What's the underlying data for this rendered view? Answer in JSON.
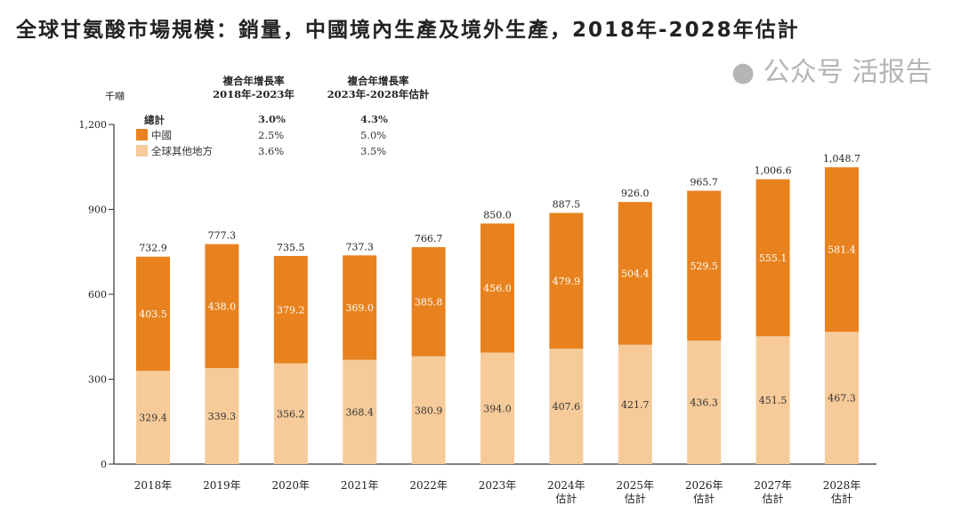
{
  "chart_data": {
    "type": "bar",
    "stacked": true,
    "title": "全球甘氨酸市場規模：銷量，中國境內生產及境外生產，2018年-2028年估計",
    "ylabel": "千噸",
    "ylim": [
      0,
      1200
    ],
    "yticks": [
      "0",
      "300",
      "600",
      "900",
      "1,200"
    ],
    "ytick_values": [
      0,
      300,
      600,
      900,
      1200
    ],
    "categories": [
      [
        "2018年"
      ],
      [
        "2019年"
      ],
      [
        "2020年"
      ],
      [
        "2021年"
      ],
      [
        "2022年"
      ],
      [
        "2023年"
      ],
      [
        "2024年",
        "估計"
      ],
      [
        "2025年",
        "估計"
      ],
      [
        "2026年",
        "估計"
      ],
      [
        "2027年",
        "估計"
      ],
      [
        "2028年",
        "估計"
      ]
    ],
    "series": [
      {
        "name": "全球其他地方",
        "color": "#F6CB99",
        "values": [
          329.4,
          339.3,
          356.2,
          368.4,
          380.9,
          394.0,
          407.6,
          421.7,
          436.3,
          451.5,
          467.3
        ],
        "labels": [
          "329.4",
          "339.3",
          "356.2",
          "368.4",
          "380.9",
          "394.0",
          "407.6",
          "421.7",
          "436.3",
          "451.5",
          "467.3"
        ]
      },
      {
        "name": "中國",
        "color": "#E8821E",
        "values": [
          403.5,
          438.0,
          379.2,
          369.0,
          385.8,
          456.0,
          479.9,
          504.4,
          529.5,
          555.1,
          581.4
        ],
        "labels": [
          "403.5",
          "438.0",
          "379.2",
          "369.0",
          "385.8",
          "456.0",
          "479.9",
          "504.4",
          "529.5",
          "555.1",
          "581.4"
        ]
      }
    ],
    "totals": [
      "732.9",
      "777.3",
      "735.5",
      "737.3",
      "766.7",
      "850.0",
      "887.5",
      "926.0",
      "965.7",
      "1,006.6",
      "1,048.7"
    ],
    "total_values": [
      732.9,
      777.3,
      735.5,
      737.3,
      766.7,
      850.0,
      887.5,
      926.0,
      965.7,
      1006.6,
      1048.7
    ],
    "legend": {
      "placement": "top-left",
      "total_label": "總計"
    },
    "cagr": {
      "headers": [
        [
          "複合年增長率",
          "2018年-2023年"
        ],
        [
          "複合年增長率",
          "2023年-2028年估計"
        ]
      ],
      "rows": [
        {
          "label": "總計",
          "values": [
            "3.0%",
            "4.3%"
          ]
        },
        {
          "label": "中國",
          "values": [
            "2.5%",
            "5.0%"
          ]
        },
        {
          "label": "全球其他地方",
          "values": [
            "3.6%",
            "3.5%"
          ]
        }
      ]
    },
    "grid": false
  },
  "watermark": "公众号 活报告"
}
